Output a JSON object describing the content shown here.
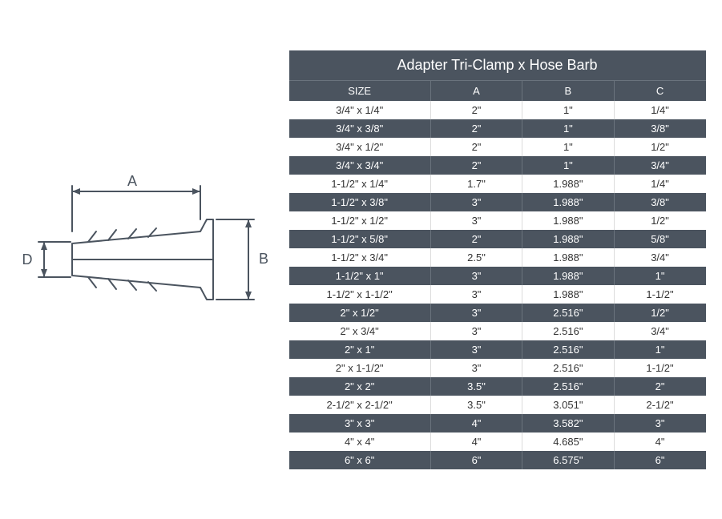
{
  "diagram": {
    "labels": {
      "A": "A",
      "B": "B",
      "D": "D"
    },
    "stroke_color": "#4b545f",
    "stroke_width": 2
  },
  "table": {
    "title": "Adapter Tri-Clamp x Hose Barb",
    "columns": [
      "SIZE",
      "A",
      "B",
      "C"
    ],
    "column_widths": [
      "34%",
      "22%",
      "22%",
      "22%"
    ],
    "colors": {
      "header_bg": "#4b545f",
      "header_text": "#ffffff",
      "dark_row_bg": "#4b545f",
      "dark_row_text": "#ffffff",
      "light_row_bg": "#ffffff",
      "light_row_text": "#333333"
    },
    "rows": [
      [
        "3/4\" x 1/4\"",
        "2\"",
        "1\"",
        "1/4\""
      ],
      [
        "3/4\" x 3/8\"",
        "2\"",
        "1\"",
        "3/8\""
      ],
      [
        "3/4\" x 1/2\"",
        "2\"",
        "1\"",
        "1/2\""
      ],
      [
        "3/4\" x 3/4\"",
        "2\"",
        "1\"",
        "3/4\""
      ],
      [
        "1-1/2\" x 1/4\"",
        "1.7\"",
        "1.988\"",
        "1/4\""
      ],
      [
        "1-1/2\" x 3/8\"",
        "3\"",
        "1.988\"",
        "3/8\""
      ],
      [
        "1-1/2\" x 1/2\"",
        "3\"",
        "1.988\"",
        "1/2\""
      ],
      [
        "1-1/2\" x 5/8\"",
        "2\"",
        "1.988\"",
        "5/8\""
      ],
      [
        "1-1/2\" x 3/4\"",
        "2.5\"",
        "1.988\"",
        "3/4\""
      ],
      [
        "1-1/2\" x 1\"",
        "3\"",
        "1.988\"",
        "1\""
      ],
      [
        "1-1/2\" x 1-1/2\"",
        "3\"",
        "1.988\"",
        "1-1/2\""
      ],
      [
        "2\" x 1/2\"",
        "3\"",
        "2.516\"",
        "1/2\""
      ],
      [
        "2\" x 3/4\"",
        "3\"",
        "2.516\"",
        "3/4\""
      ],
      [
        "2\" x 1\"",
        "3\"",
        "2.516\"",
        "1\""
      ],
      [
        "2\" x 1-1/2\"",
        "3\"",
        "2.516\"",
        "1-1/2\""
      ],
      [
        "2\" x 2\"",
        "3.5\"",
        "2.516\"",
        "2\""
      ],
      [
        "2-1/2\" x 2-1/2\"",
        "3.5\"",
        "3.051\"",
        "2-1/2\""
      ],
      [
        "3\" x 3\"",
        "4\"",
        "3.582\"",
        "3\""
      ],
      [
        "4\" x 4\"",
        "4\"",
        "4.685\"",
        "4\""
      ],
      [
        "6\" x 6\"",
        "6\"",
        "6.575\"",
        "6\""
      ]
    ]
  }
}
